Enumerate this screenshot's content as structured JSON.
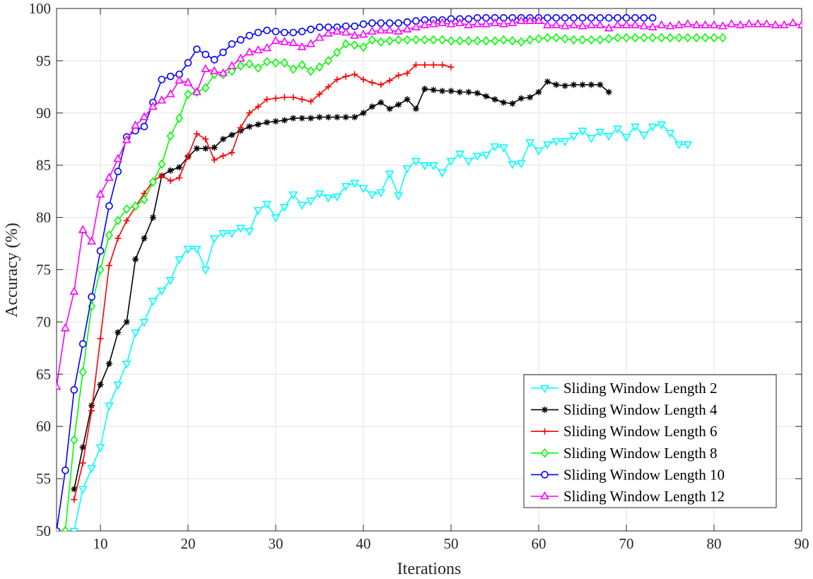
{
  "chart_data": {
    "type": "line",
    "title": "",
    "xlabel": "Iterations",
    "ylabel": "Accuracy (%)",
    "xlim": [
      5,
      90
    ],
    "ylim": [
      50,
      100
    ],
    "xticks": [
      10,
      20,
      30,
      40,
      50,
      60,
      70,
      80,
      90
    ],
    "yticks": [
      50,
      55,
      60,
      65,
      70,
      75,
      80,
      85,
      90,
      95,
      100
    ],
    "grid": true,
    "legend_position": "bottom-right",
    "series": [
      {
        "name": "Sliding Window Length 2",
        "color": "#00FFFF",
        "marker": "triangle-down",
        "x": [
          7,
          8,
          9,
          10,
          11,
          12,
          13,
          14,
          15,
          16,
          17,
          18,
          19,
          20,
          21,
          22,
          23,
          24,
          25,
          26,
          27,
          28,
          29,
          30,
          31,
          32,
          33,
          34,
          35,
          36,
          37,
          38,
          39,
          40,
          41,
          42,
          43,
          44,
          45,
          46,
          47,
          48,
          49,
          50,
          51,
          52,
          53,
          54,
          55,
          56,
          57,
          58,
          59,
          60,
          61,
          62,
          63,
          64,
          65,
          66,
          67,
          68,
          69,
          70,
          71,
          72,
          73,
          74,
          75,
          76,
          77
        ],
        "y": [
          50,
          54,
          56,
          58,
          62,
          64,
          66,
          69,
          70,
          72,
          73,
          74,
          76,
          77,
          77,
          75,
          78,
          78.5,
          78.5,
          79,
          78.7,
          80.7,
          81.3,
          80,
          81,
          82.2,
          81.2,
          81.6,
          82.3,
          81.9,
          82,
          83,
          83.3,
          82.8,
          82.2,
          82.4,
          84.2,
          82.1,
          84.7,
          85.4,
          85,
          85,
          84.3,
          85.4,
          86.1,
          85.4,
          85.9,
          86,
          86.8,
          86.7,
          85.1,
          85.2,
          87.2,
          86.4,
          87,
          87.3,
          87.3,
          87.8,
          88.3,
          87.6,
          88.2,
          87.8,
          88.5,
          87.7,
          88.7,
          87.9,
          88.7,
          88.9,
          88.1,
          87,
          87
        ]
      },
      {
        "name": "Sliding Window Length 4",
        "color": "#000000",
        "marker": "asterisk",
        "x": [
          7,
          8,
          9,
          10,
          11,
          12,
          13,
          14,
          15,
          16,
          17,
          18,
          19,
          20,
          21,
          22,
          23,
          24,
          25,
          26,
          27,
          28,
          29,
          30,
          31,
          32,
          33,
          34,
          35,
          36,
          37,
          38,
          39,
          40,
          41,
          42,
          43,
          44,
          45,
          46,
          47,
          48,
          49,
          50,
          51,
          52,
          53,
          54,
          55,
          56,
          57,
          58,
          59,
          60,
          61,
          62,
          63,
          64,
          65,
          66,
          67,
          68
        ],
        "y": [
          54,
          58,
          62,
          64,
          66,
          69,
          70,
          76,
          78,
          80,
          84,
          84.5,
          84.8,
          85.8,
          86.6,
          86.6,
          86.7,
          87.5,
          87.9,
          88.3,
          88.7,
          88.9,
          89.1,
          89.2,
          89.3,
          89.5,
          89.5,
          89.5,
          89.6,
          89.6,
          89.6,
          89.6,
          89.6,
          90,
          90.6,
          91,
          90.4,
          90.8,
          91.3,
          90.4,
          92.3,
          92.2,
          92.1,
          92.1,
          92,
          92,
          91.9,
          91.6,
          91.3,
          91,
          90.9,
          91.4,
          91.5,
          92,
          93,
          92.7,
          92.6,
          92.7,
          92.7,
          92.7,
          92.7,
          92
        ]
      },
      {
        "name": "Sliding Window Length 6",
        "color": "#FF0000",
        "marker": "plus",
        "x": [
          7,
          8,
          9,
          10,
          11,
          12,
          13,
          14,
          15,
          16,
          17,
          18,
          19,
          20,
          21,
          22,
          23,
          24,
          25,
          26,
          27,
          28,
          29,
          30,
          31,
          32,
          33,
          34,
          35,
          36,
          37,
          38,
          39,
          40,
          41,
          42,
          43,
          44,
          45,
          46,
          47,
          48,
          49,
          50
        ],
        "y": [
          53,
          56.5,
          61.5,
          68.4,
          75.4,
          78,
          79.7,
          81,
          82.3,
          83.5,
          84,
          83.5,
          83.8,
          85.9,
          88,
          87.5,
          85.5,
          85.9,
          86.2,
          88.6,
          90,
          90.6,
          91.3,
          91.4,
          91.5,
          91.5,
          91.3,
          91.1,
          91.8,
          92.5,
          93.2,
          93.5,
          93.7,
          93.2,
          92.9,
          92.7,
          93.1,
          93.6,
          93.8,
          94.6,
          94.6,
          94.6,
          94.6,
          94.4
        ]
      },
      {
        "name": "Sliding Window Length 8",
        "color": "#00FF00",
        "marker": "diamond",
        "x": [
          6,
          7,
          8,
          9,
          10,
          11,
          12,
          13,
          14,
          15,
          16,
          17,
          18,
          19,
          20,
          21,
          22,
          23,
          24,
          25,
          26,
          27,
          28,
          29,
          30,
          31,
          32,
          33,
          34,
          35,
          36,
          37,
          38,
          39,
          40,
          41,
          42,
          43,
          44,
          45,
          46,
          47,
          48,
          49,
          50,
          51,
          52,
          53,
          54,
          55,
          56,
          57,
          58,
          59,
          60,
          61,
          62,
          63,
          64,
          65,
          66,
          67,
          68,
          69,
          70,
          71,
          72,
          73,
          74,
          75,
          76,
          77,
          78,
          79,
          80,
          81
        ],
        "y": [
          50,
          58.7,
          65.2,
          71.5,
          75,
          78.3,
          79.7,
          80.8,
          81.1,
          81.7,
          83.4,
          85.1,
          87.8,
          89.5,
          91.8,
          92,
          92.4,
          93.7,
          93.7,
          94,
          94.5,
          94.7,
          94.3,
          94.9,
          94.8,
          94.8,
          94.2,
          94.6,
          94,
          94.4,
          95,
          95.8,
          96.6,
          96.5,
          96.3,
          97,
          96.8,
          96.9,
          97,
          97,
          97,
          97,
          97,
          97,
          96.9,
          96.9,
          96.9,
          96.9,
          96.9,
          96.9,
          97,
          96.9,
          96.8,
          97,
          97.1,
          97.2,
          97.2,
          97.1,
          97,
          97,
          97,
          97,
          97.1,
          97.2,
          97.2,
          97.2,
          97.2,
          97.2,
          97.2,
          97.2,
          97.2,
          97.2,
          97.2,
          97.2,
          97.2,
          97.2
        ]
      },
      {
        "name": "Sliding Window Length 10",
        "color": "#0000FF",
        "marker": "circle",
        "x": [
          5,
          6,
          7,
          8,
          9,
          10,
          11,
          12,
          13,
          14,
          15,
          16,
          17,
          18,
          19,
          20,
          21,
          22,
          23,
          24,
          25,
          26,
          27,
          28,
          29,
          30,
          31,
          32,
          33,
          34,
          35,
          36,
          37,
          38,
          39,
          40,
          41,
          42,
          43,
          44,
          45,
          46,
          47,
          48,
          49,
          50,
          51,
          52,
          53,
          54,
          55,
          56,
          57,
          58,
          59,
          60,
          61,
          62,
          63,
          64,
          65,
          66,
          67,
          68,
          69,
          70,
          71,
          72,
          73
        ],
        "y": [
          50,
          55.8,
          63.5,
          67.9,
          72.4,
          76.8,
          81.1,
          84.4,
          87.7,
          88.3,
          88.7,
          91,
          93.2,
          93.5,
          93.7,
          94.8,
          96.1,
          95.6,
          95.1,
          95.8,
          96.6,
          97,
          97.4,
          97.7,
          97.9,
          97.8,
          97.7,
          97.7,
          97.8,
          98,
          98.2,
          98.2,
          98.2,
          98.3,
          98.3,
          98.5,
          98.6,
          98.6,
          98.6,
          98.6,
          98.7,
          98.8,
          98.9,
          98.9,
          98.9,
          99,
          99,
          99,
          99.1,
          99.1,
          99.1,
          99.1,
          99.1,
          99.1,
          99.1,
          99.1,
          99.1,
          99.1,
          99.1,
          99.1,
          99.1,
          99.1,
          99.1,
          99.1,
          99.1,
          99.1,
          99.1,
          99.1,
          99.1
        ]
      },
      {
        "name": "Sliding Window Length 12",
        "color": "#FF00FF",
        "marker": "triangle-up",
        "x": [
          5,
          6,
          7,
          8,
          9,
          10,
          11,
          12,
          13,
          14,
          15,
          16,
          17,
          18,
          19,
          20,
          21,
          22,
          23,
          24,
          25,
          26,
          27,
          28,
          29,
          30,
          31,
          32,
          33,
          34,
          35,
          36,
          37,
          38,
          39,
          40,
          41,
          42,
          43,
          44,
          45,
          46,
          47,
          48,
          49,
          50,
          51,
          52,
          53,
          54,
          55,
          56,
          57,
          58,
          59,
          60,
          61,
          62,
          63,
          64,
          65,
          66,
          67,
          68,
          69,
          70,
          71,
          72,
          73,
          74,
          75,
          76,
          77,
          78,
          79,
          80,
          81,
          82,
          83,
          84,
          85,
          86,
          87,
          88,
          89,
          90
        ],
        "y": [
          63.8,
          69.4,
          72.9,
          78.8,
          77.7,
          82.2,
          83.8,
          85.6,
          87.4,
          88.8,
          89.6,
          90.6,
          91.2,
          91.8,
          93.1,
          92.9,
          92,
          94.2,
          94,
          93.8,
          94.5,
          95.2,
          95.8,
          96,
          96.2,
          96.9,
          96.8,
          96.7,
          96.3,
          96.6,
          97.2,
          97.6,
          97.8,
          97.7,
          97.4,
          97.5,
          97.8,
          97.9,
          97.9,
          97.8,
          98,
          98.2,
          98.4,
          98.5,
          98.6,
          98.5,
          98.6,
          98.4,
          98.5,
          98.5,
          98.6,
          98.5,
          98.6,
          98.8,
          98.8,
          98.8,
          98.4,
          98.4,
          98.3,
          98.4,
          98.3,
          98.4,
          98.4,
          98.1,
          98.4,
          98.4,
          98.4,
          98.3,
          98.2,
          98.4,
          98.3,
          98.4,
          98.5,
          98.4,
          98.4,
          98.4,
          98.3,
          98.5,
          98.4,
          98.5,
          98.5,
          98.5,
          98.4,
          98.4,
          98.6,
          98.4
        ]
      }
    ]
  }
}
